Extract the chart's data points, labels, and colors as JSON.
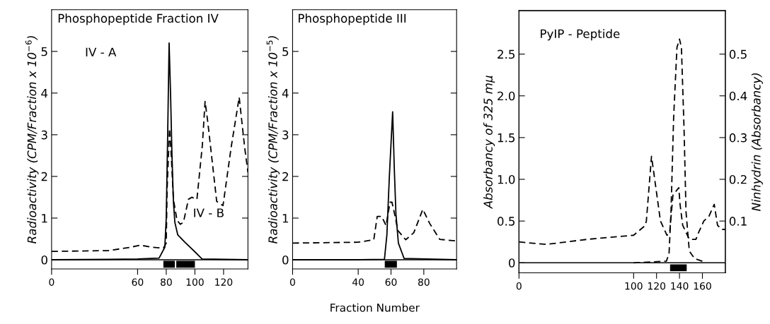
{
  "chart_data": [
    {
      "type": "line",
      "title": "Phosphopeptide Fraction IV",
      "ylabel": "Radioactivity (CPM/Fraction x 10$^{−6}$)",
      "annotations": [
        "IV - A",
        "IV - B"
      ],
      "xlim": [
        0,
        137
      ],
      "xticks": [
        0,
        60,
        80,
        100,
        120
      ],
      "ylim": [
        -0.22,
        6.0
      ],
      "yticks": [
        0,
        1,
        2,
        3,
        4,
        5
      ],
      "series": [
        {
          "color": "#000000",
          "line_style": "solid",
          "x": [
            0,
            40,
            60,
            75,
            79,
            80,
            81,
            82,
            83,
            84,
            85,
            86,
            88,
            93,
            100,
            105,
            137
          ],
          "values": [
            0,
            0.01,
            0.02,
            0.04,
            0.3,
            1,
            3,
            5.2,
            4,
            2.5,
            1.4,
            0.9,
            0.6,
            0.42,
            0.19,
            0.02,
            0
          ]
        },
        {
          "color": "#000000",
          "line_style": "dashed",
          "x": [
            0,
            40,
            55,
            62,
            70,
            78,
            80,
            80.6,
            82.3,
            83.5,
            85,
            87.5,
            89.8,
            92,
            95.5,
            97.8,
            101.4,
            105.2,
            107.1,
            109,
            115.2,
            119.6,
            125.3,
            130.9,
            134.7,
            137
          ],
          "values": [
            0.2,
            0.22,
            0.3,
            0.35,
            0.3,
            0.28,
            0.4,
            1.7,
            3.15,
            2.5,
            1.45,
            0.95,
            0.85,
            0.9,
            1.45,
            1.5,
            1.45,
            2.75,
            3.8,
            3.3,
            1.4,
            1.3,
            2.7,
            3.9,
            2.7,
            2.1
          ]
        },
        {
          "type": "line",
          "color": "#000000",
          "line_style": "solid",
          "x": [
            78,
            86,
            86.5,
            87,
            100
          ],
          "values": [
            -0.11,
            -0.11,
            null,
            -0.11,
            -0.11
          ]
        }
      ]
    },
    {
      "type": "line",
      "title": "Phosphopeptide III",
      "ylabel": "Radioactivity (CPM/Fraction x 10$^{−5}$)",
      "xlabel": "Fraction Number",
      "xlim": [
        0,
        100
      ],
      "xticks": [
        0,
        40,
        60,
        80
      ],
      "ylim": [
        -0.22,
        6.0
      ],
      "yticks": [
        0,
        1,
        2,
        3,
        4,
        5
      ],
      "series": [
        {
          "color": "#000000",
          "line_style": "solid",
          "x": [
            0,
            40,
            56,
            57.5,
            59,
            61,
            62,
            63,
            64.5,
            68,
            100
          ],
          "values": [
            0,
            0,
            0.01,
            0.6,
            2,
            3.55,
            2.2,
            1.1,
            0.4,
            0.03,
            0
          ]
        },
        {
          "color": "#000000",
          "line_style": "dashed",
          "x": [
            0,
            40,
            49.5,
            51.6,
            54.3,
            57,
            59.4,
            60.6,
            62.5,
            64.2,
            69,
            73.9,
            79.4,
            83.6,
            89.7,
            100
          ],
          "values": [
            0.4,
            0.42,
            0.48,
            1.04,
            1.04,
            0.82,
            1.38,
            1.38,
            1.04,
            0.7,
            0.48,
            0.65,
            1.21,
            0.87,
            0.49,
            0.45
          ]
        },
        {
          "type": "line",
          "color": "#000000",
          "line_style": "solid",
          "x": [
            56.2,
            63.6
          ],
          "values": [
            -0.11,
            -0.11
          ]
        }
      ]
    },
    {
      "type": "line",
      "title": "PyIP - Peptide",
      "ylabel": "Absorbancy of 325 mμ",
      "y2label": "Ninhydrin (Absorbancy)",
      "xlim": [
        0,
        180
      ],
      "xticks": [
        0,
        100,
        120,
        140,
        160
      ],
      "ylim": [
        -0.12,
        3.02
      ],
      "yticks": [
        0,
        {
          "value": 0.5,
          "label": "0.5"
        },
        {
          "value": 1,
          "label": "1.0"
        },
        {
          "value": 1.5,
          "label": "1.5"
        },
        {
          "value": 2,
          "label": "2.0"
        },
        {
          "value": 2.5,
          "label": "2.5"
        }
      ],
      "y2lim": [
        -0.024,
        0.604
      ],
      "y2ticks": [
        0.1,
        0.2,
        0.3,
        0.4,
        0.5
      ],
      "series": [
        {
          "color": "#000000",
          "line_style": "dashed",
          "x": [
            100,
            128.6,
            130.9,
            132.6,
            134.9,
            137.8,
            140,
            141.7,
            144,
            145.7,
            148.6,
            153.2,
            161.7
          ],
          "values": [
            0,
            0.02,
            0.11,
            0.61,
            1.74,
            2.58,
            2.68,
            2.58,
            1.6,
            0.61,
            0.14,
            0.05,
            0.01
          ]
        },
        {
          "color": "#000000",
          "line_style": "dashed",
          "axis": "y2",
          "x": [
            0,
            23.6,
            59,
            100,
            110,
            111.1,
            115.6,
            119.4,
            123.4,
            129.1,
            131.4,
            134.3,
            139.4,
            140.5,
            142.8,
            148.6,
            154.3,
            156.6,
            161.2,
            165.8,
            170.3,
            173.2,
            176.6,
            180
          ],
          "values": [
            0.05,
            0.044,
            0.056,
            0.066,
            0.089,
            0.1,
            0.255,
            0.18,
            0.1,
            0.066,
            0.072,
            0.162,
            0.18,
            0.14,
            0.09,
            0.056,
            0.056,
            0.072,
            0.1,
            0.112,
            0.14,
            0.09,
            0.08,
            0.08
          ]
        },
        {
          "type": "line",
          "color": "#000000",
          "line_style": "solid",
          "x": [
            131.8,
            146.3
          ],
          "values": [
            -0.06,
            -0.06
          ]
        }
      ]
    }
  ]
}
